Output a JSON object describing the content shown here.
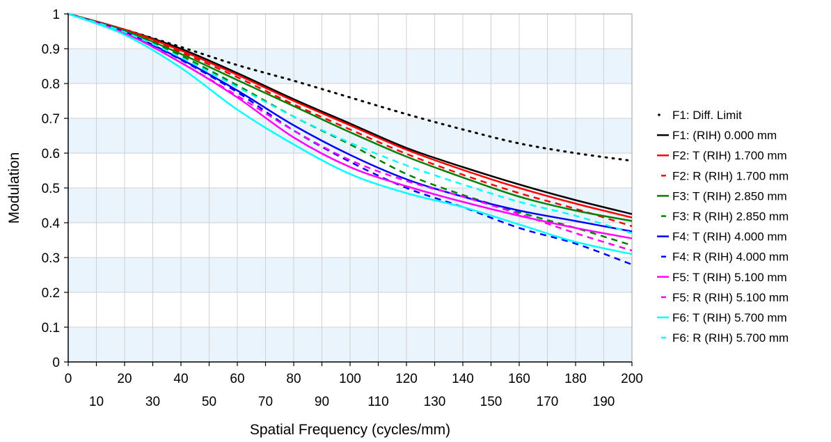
{
  "chart_data": {
    "type": "line",
    "title": "",
    "xlabel": "Spatial Frequency (cycles/mm)",
    "ylabel": "Modulation",
    "xlim": [
      0,
      200
    ],
    "ylim": [
      0,
      1
    ],
    "x_ticks_top_row": [
      "0",
      "20",
      "40",
      "60",
      "80",
      "100",
      "120",
      "140",
      "160",
      "180",
      "200"
    ],
    "x_ticks_bottom_row": [
      "10",
      "30",
      "50",
      "70",
      "90",
      "110",
      "130",
      "150",
      "170",
      "190"
    ],
    "y_ticks": [
      "0",
      "0.1",
      "0.2",
      "0.3",
      "0.4",
      "0.5",
      "0.6",
      "0.7",
      "0.8",
      "0.9",
      "1"
    ],
    "grid": true,
    "alternating_bands": true,
    "legend_position": "right",
    "x": [
      0,
      20,
      40,
      60,
      80,
      100,
      120,
      140,
      160,
      180,
      200
    ],
    "series": [
      {
        "name": "F1: Diff. Limit",
        "color": "#000000",
        "style": "dotted",
        "values": [
          1.0,
          0.955,
          0.905,
          0.853,
          0.808,
          0.76,
          0.712,
          0.668,
          0.628,
          0.6,
          0.578
        ]
      },
      {
        "name": "F1: (RIH) 0.000 mm",
        "color": "#000000",
        "style": "solid",
        "values": [
          1.0,
          0.955,
          0.9,
          0.83,
          0.755,
          0.685,
          0.615,
          0.56,
          0.51,
          0.465,
          0.425
        ]
      },
      {
        "name": "F2: T (RIH) 1.700 mm",
        "color": "#ff0000",
        "style": "solid",
        "values": [
          1.0,
          0.955,
          0.895,
          0.825,
          0.75,
          0.68,
          0.61,
          0.552,
          0.5,
          0.455,
          0.415
        ]
      },
      {
        "name": "F2: R (RIH) 1.700 mm",
        "color": "#ff0000",
        "style": "dashed",
        "values": [
          1.0,
          0.953,
          0.89,
          0.818,
          0.74,
          0.668,
          0.598,
          0.538,
          0.485,
          0.44,
          0.39
        ]
      },
      {
        "name": "F3: T (RIH) 2.850 mm",
        "color": "#008000",
        "style": "solid",
        "values": [
          1.0,
          0.952,
          0.885,
          0.81,
          0.735,
          0.66,
          0.59,
          0.53,
          0.475,
          0.435,
          0.405
        ]
      },
      {
        "name": "F3: R (RIH) 2.850 mm",
        "color": "#008000",
        "style": "dashed",
        "values": [
          1.0,
          0.95,
          0.88,
          0.795,
          0.705,
          0.625,
          0.54,
          0.48,
          0.43,
          0.385,
          0.335
        ]
      },
      {
        "name": "F4: T (RIH) 4.000 mm",
        "color": "#0000ff",
        "style": "solid",
        "values": [
          1.0,
          0.948,
          0.87,
          0.78,
          0.68,
          0.595,
          0.525,
          0.475,
          0.435,
          0.405,
          0.375
        ]
      },
      {
        "name": "F4: R (RIH) 4.000 mm",
        "color": "#0000ff",
        "style": "dashed",
        "values": [
          1.0,
          0.948,
          0.868,
          0.775,
          0.665,
          0.575,
          0.5,
          0.445,
          0.385,
          0.34,
          0.28
        ]
      },
      {
        "name": "F5: T (RIH) 5.100 mm",
        "color": "#ff00ff",
        "style": "solid",
        "values": [
          1.0,
          0.945,
          0.86,
          0.76,
          0.645,
          0.56,
          0.505,
          0.46,
          0.42,
          0.385,
          0.355
        ]
      },
      {
        "name": "F5: R (RIH) 5.100 mm",
        "color": "#ff00ff",
        "style": "dashed",
        "values": [
          1.0,
          0.945,
          0.86,
          0.765,
          0.665,
          0.58,
          0.52,
          0.475,
          0.425,
          0.37,
          0.32
        ]
      },
      {
        "name": "F6: T (RIH) 5.700 mm",
        "color": "#00ffff",
        "style": "solid",
        "values": [
          1.0,
          0.94,
          0.845,
          0.725,
          0.625,
          0.54,
          0.485,
          0.445,
          0.395,
          0.345,
          0.31
        ]
      },
      {
        "name": "F6: R (RIH) 5.700 mm",
        "color": "#00ffff",
        "style": "dashed",
        "values": [
          1.0,
          0.948,
          0.875,
          0.79,
          0.705,
          0.63,
          0.565,
          0.51,
          0.46,
          0.42,
          0.37
        ]
      }
    ]
  }
}
